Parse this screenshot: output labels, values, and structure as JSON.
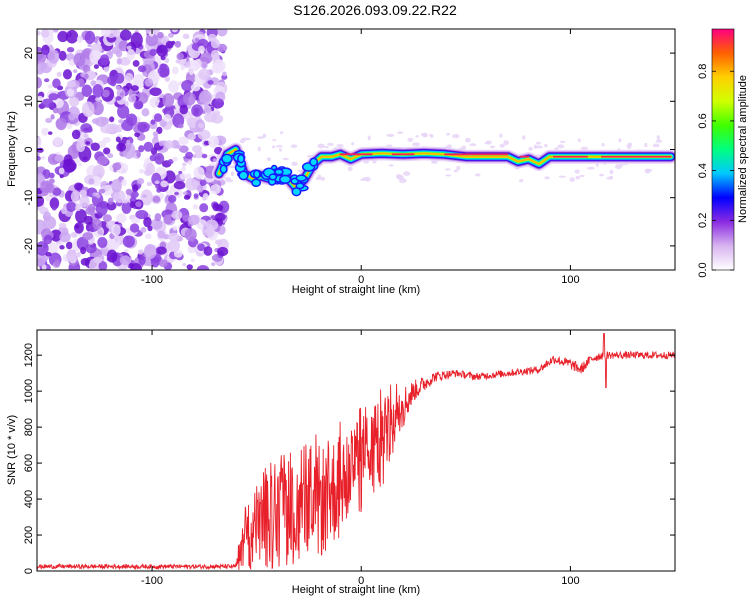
{
  "title": "S126.2026.093.09.22.R22",
  "chart_data": [
    {
      "type": "heatmap",
      "name": "spectrogram",
      "xlabel": "Height of straight line (km)",
      "ylabel": "Frequency (Hz)",
      "xlim": [
        -155,
        150
      ],
      "ylim": [
        -25,
        25
      ],
      "xticks": [
        -100,
        0,
        100
      ],
      "xtick_labels": [
        "-100",
        "0",
        "100"
      ],
      "yticks": [
        -20,
        -10,
        0,
        10,
        20
      ],
      "ytick_labels": [
        "-20",
        "-10",
        "0",
        "10",
        "20"
      ],
      "noise_region_x": [
        -155,
        -68
      ],
      "ridge": [
        {
          "x": -68,
          "y": -5
        },
        {
          "x": -64,
          "y": -1
        },
        {
          "x": -60,
          "y": 0
        },
        {
          "x": -56,
          "y": -5
        },
        {
          "x": -52,
          "y": -6
        },
        {
          "x": -48,
          "y": -5.5
        },
        {
          "x": -44,
          "y": -6
        },
        {
          "x": -40,
          "y": -5
        },
        {
          "x": -35,
          "y": -6
        },
        {
          "x": -31,
          "y": -8
        },
        {
          "x": -27,
          "y": -6
        },
        {
          "x": -23,
          "y": -3
        },
        {
          "x": -19,
          "y": -1.5
        },
        {
          "x": -14,
          "y": -1.5
        },
        {
          "x": -10,
          "y": -1
        },
        {
          "x": -5,
          "y": -2
        },
        {
          "x": 0,
          "y": -1
        },
        {
          "x": 10,
          "y": -0.8
        },
        {
          "x": 20,
          "y": -1
        },
        {
          "x": 30,
          "y": -0.8
        },
        {
          "x": 40,
          "y": -1
        },
        {
          "x": 50,
          "y": -1.5
        },
        {
          "x": 60,
          "y": -1.5
        },
        {
          "x": 70,
          "y": -1.5
        },
        {
          "x": 75,
          "y": -2.5
        },
        {
          "x": 80,
          "y": -2
        },
        {
          "x": 85,
          "y": -3
        },
        {
          "x": 90,
          "y": -1.5
        },
        {
          "x": 100,
          "y": -1.5
        },
        {
          "x": 110,
          "y": -1.5
        },
        {
          "x": 120,
          "y": -1.5
        },
        {
          "x": 130,
          "y": -1.5
        },
        {
          "x": 140,
          "y": -1.5
        },
        {
          "x": 148,
          "y": -1.5
        }
      ],
      "colorbar": {
        "label": "Normalized spectral amplitude",
        "ticks": [
          0.0,
          0.2,
          0.4,
          0.6,
          0.8
        ],
        "tick_labels": [
          "0.0",
          "0.2",
          "0.4",
          "0.6",
          "0.8"
        ],
        "range": [
          0,
          0.97
        ],
        "colors": [
          "#ffffff",
          "#d8b4f0",
          "#8a2be2",
          "#0000ff",
          "#00c8ff",
          "#00ff80",
          "#40ff00",
          "#d0ff00",
          "#ffd000",
          "#ff6000",
          "#ff0080"
        ]
      }
    },
    {
      "type": "line",
      "name": "snr",
      "xlabel": "Height of straight line (km)",
      "ylabel": "SNR (10 * v/v)",
      "xlim": [
        -155,
        150
      ],
      "ylim": [
        0,
        1340
      ],
      "xticks": [
        -100,
        0,
        100
      ],
      "xtick_labels": [
        "-100",
        "0",
        "100"
      ],
      "yticks": [
        0,
        200,
        400,
        600,
        800,
        1000,
        1200
      ],
      "ytick_labels": [
        "0",
        "200",
        "400",
        "600",
        "800",
        "1000",
        "1200"
      ],
      "line_color": "#e8202a",
      "envelope": [
        {
          "x": -155,
          "y": 25,
          "noise": 12
        },
        {
          "x": -60,
          "y": 25,
          "noise": 12
        },
        {
          "x": -55,
          "y": 150,
          "noise": 250
        },
        {
          "x": -45,
          "y": 280,
          "noise": 280
        },
        {
          "x": -30,
          "y": 320,
          "noise": 300
        },
        {
          "x": -20,
          "y": 380,
          "noise": 320
        },
        {
          "x": -10,
          "y": 480,
          "noise": 300
        },
        {
          "x": 0,
          "y": 600,
          "noise": 280
        },
        {
          "x": 10,
          "y": 700,
          "noise": 250
        },
        {
          "x": 18,
          "y": 880,
          "noise": 150
        },
        {
          "x": 25,
          "y": 1000,
          "noise": 60
        },
        {
          "x": 35,
          "y": 1080,
          "noise": 30
        },
        {
          "x": 45,
          "y": 1100,
          "noise": 20
        },
        {
          "x": 55,
          "y": 1080,
          "noise": 20
        },
        {
          "x": 70,
          "y": 1100,
          "noise": 20
        },
        {
          "x": 85,
          "y": 1120,
          "noise": 20
        },
        {
          "x": 92,
          "y": 1180,
          "noise": 25
        },
        {
          "x": 100,
          "y": 1150,
          "noise": 30
        },
        {
          "x": 105,
          "y": 1120,
          "noise": 30
        },
        {
          "x": 110,
          "y": 1180,
          "noise": 25
        },
        {
          "x": 115,
          "y": 1200,
          "noise": 25
        },
        {
          "x": 120,
          "y": 1200,
          "noise": 20
        },
        {
          "x": 135,
          "y": 1200,
          "noise": 20
        },
        {
          "x": 150,
          "y": 1200,
          "noise": 20
        }
      ],
      "spikes": [
        {
          "x": 116,
          "y": 1320
        },
        {
          "x": 117,
          "y": 1020
        }
      ]
    }
  ]
}
